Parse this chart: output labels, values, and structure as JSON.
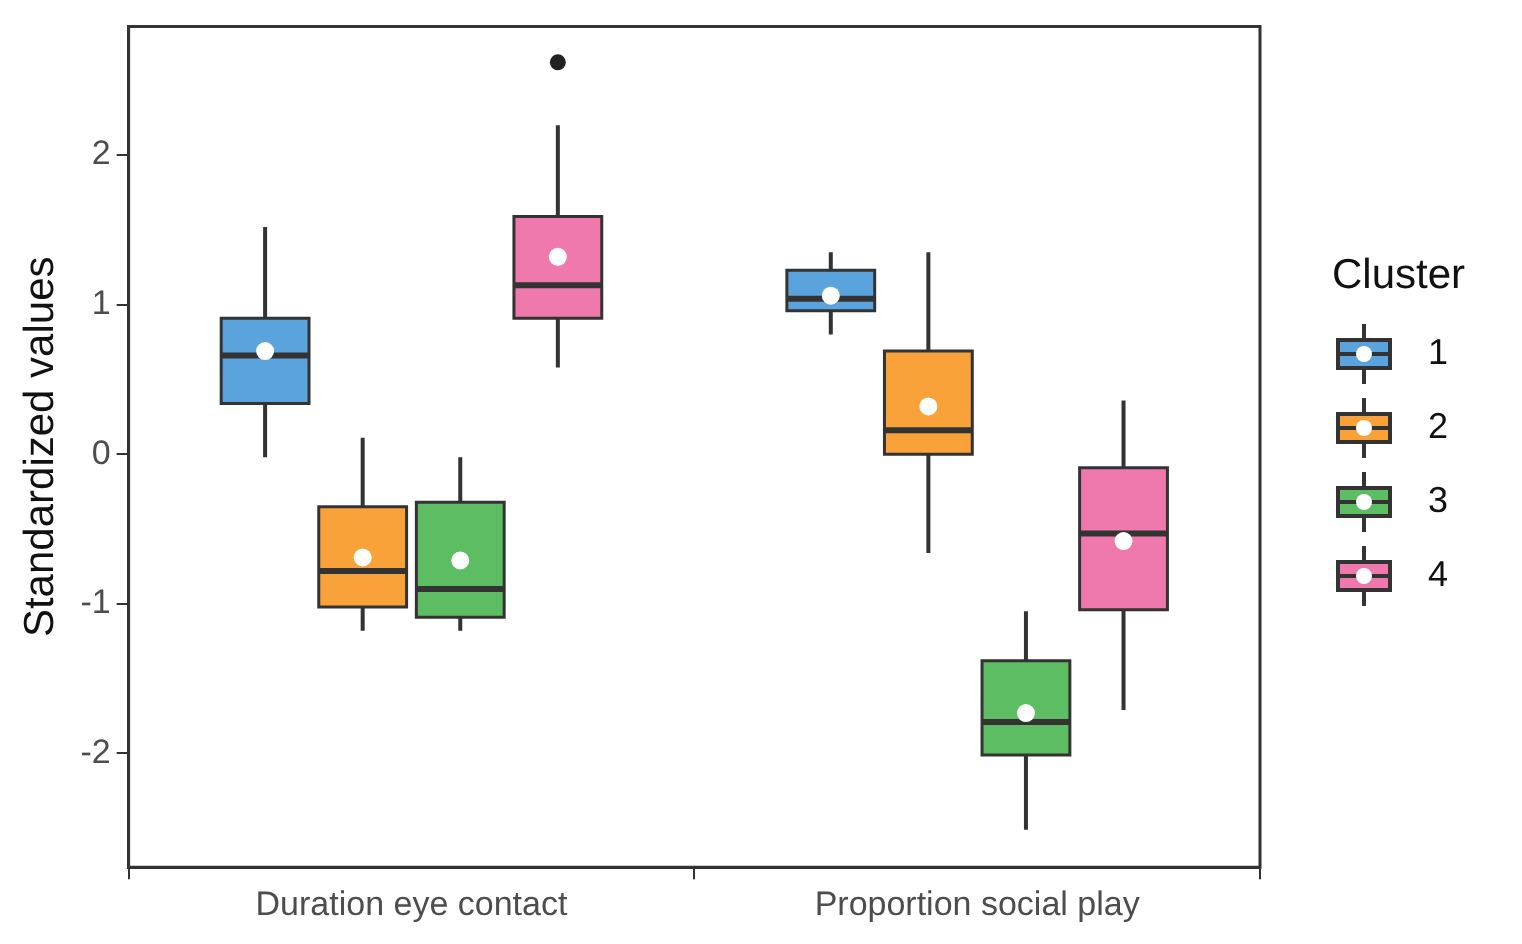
{
  "chart_data": {
    "type": "box",
    "ylabel": "Standardized values",
    "legend_title": "Cluster",
    "legend": "right",
    "grid": false,
    "categories": [
      "Duration eye contact",
      "Proportion social play"
    ],
    "ylim": [
      -2.76,
      2.86
    ],
    "yticks": [
      -2,
      -1,
      0,
      1,
      2
    ],
    "series": [
      {
        "name": "1",
        "color": "#5ba3dc",
        "boxes": [
          {
            "low": -0.02,
            "q1": 0.34,
            "median": 0.66,
            "q3": 0.91,
            "high": 1.52,
            "mean": 0.69
          },
          {
            "low": 0.8,
            "q1": 0.96,
            "median": 1.04,
            "q3": 1.23,
            "high": 1.35,
            "mean": 1.06
          }
        ]
      },
      {
        "name": "2",
        "color": "#f9a23a",
        "boxes": [
          {
            "low": -1.18,
            "q1": -1.02,
            "median": -0.78,
            "q3": -0.35,
            "high": 0.11,
            "mean": -0.69
          },
          {
            "low": -0.66,
            "q1": 0.0,
            "median": 0.16,
            "q3": 0.69,
            "high": 1.35,
            "mean": 0.32
          }
        ]
      },
      {
        "name": "3",
        "color": "#5cbd62",
        "boxes": [
          {
            "low": -1.18,
            "q1": -1.09,
            "median": -0.9,
            "q3": -0.32,
            "high": -0.02,
            "mean": -0.71
          },
          {
            "low": -2.51,
            "q1": -2.01,
            "median": -1.79,
            "q3": -1.38,
            "high": -1.05,
            "mean": -1.73
          }
        ]
      },
      {
        "name": "4",
        "color": "#ef78ac",
        "boxes": [
          {
            "low": 0.58,
            "q1": 0.91,
            "median": 1.13,
            "q3": 1.59,
            "high": 2.2,
            "mean": 1.32,
            "outliers": [
              2.62
            ]
          },
          {
            "low": -1.71,
            "q1": -1.04,
            "median": -0.53,
            "q3": -0.09,
            "high": 0.36,
            "mean": -0.58
          }
        ]
      }
    ]
  }
}
